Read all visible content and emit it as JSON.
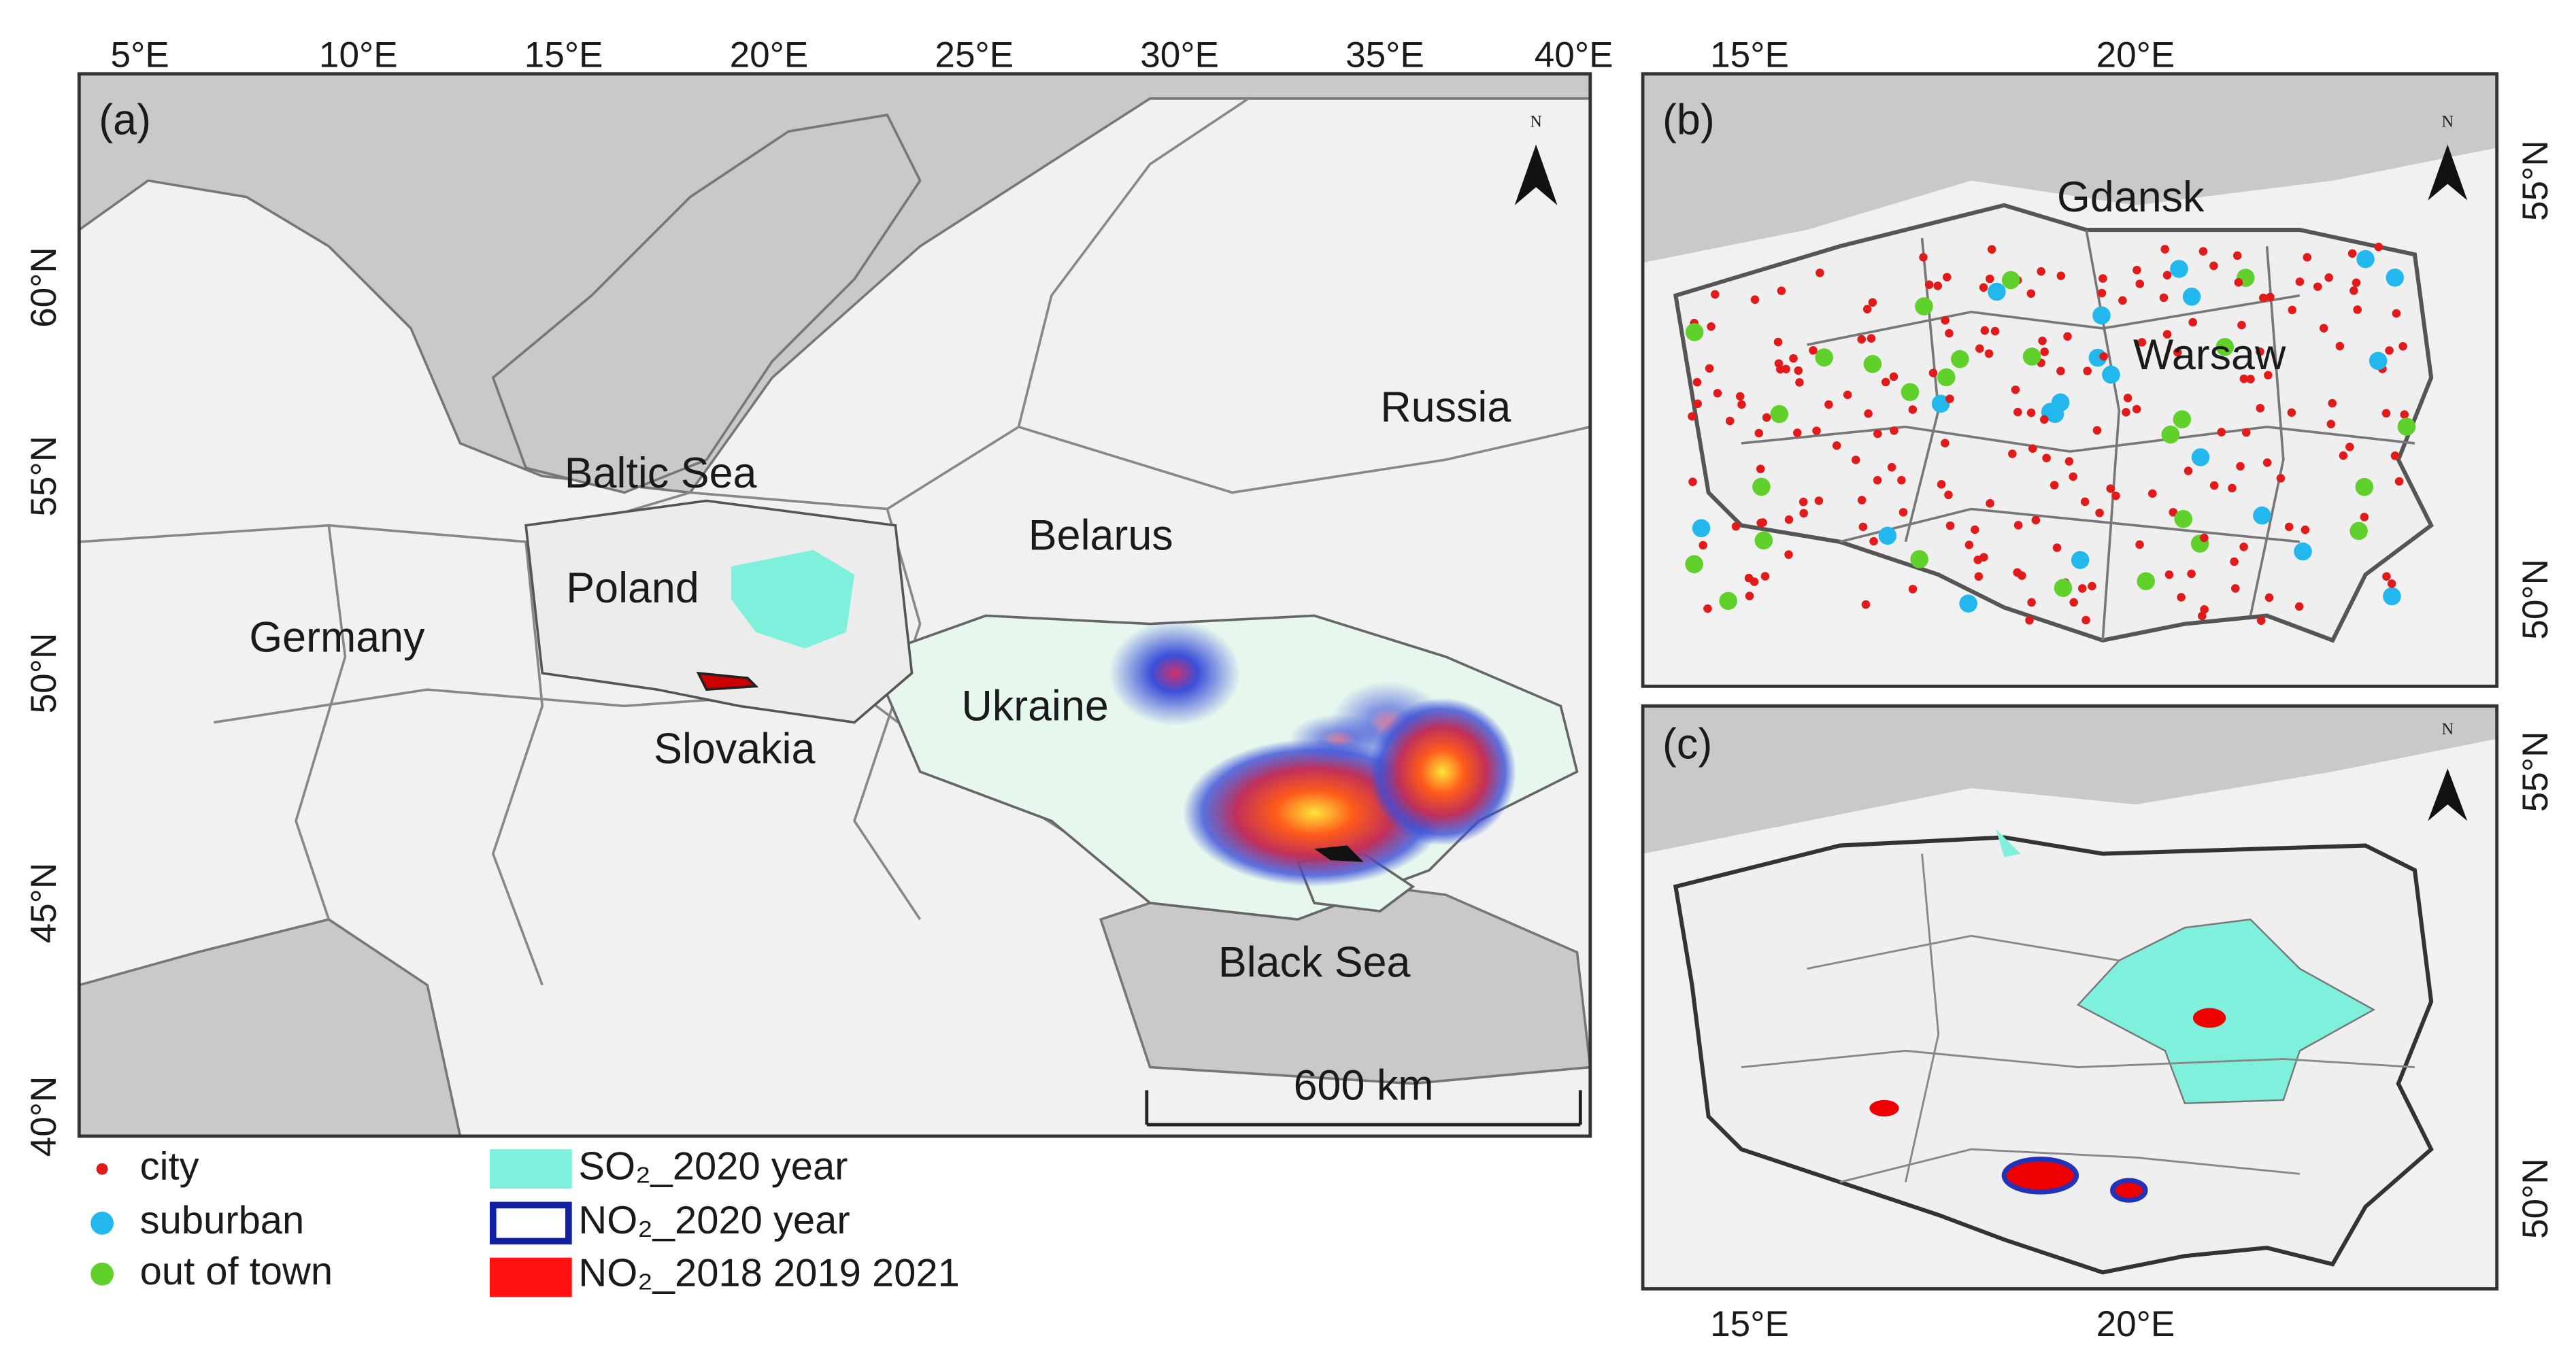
{
  "panels": [
    {
      "label": "(a)",
      "lon_ticks": [
        "5°E",
        "10°E",
        "15°E",
        "20°E",
        "25°E",
        "30°E",
        "35°E",
        "40°E"
      ],
      "lat_ticks": [
        "60°N",
        "55°N",
        "50°N",
        "45°N",
        "40°N"
      ],
      "places": [
        "Russia",
        "Baltic Sea",
        "Belarus",
        "Poland",
        "Germany",
        "Ukraine",
        "Slovakia",
        "Black Sea"
      ],
      "scale_bar": "600 km",
      "north": "N"
    },
    {
      "label": "(b)",
      "lon_ticks": [
        "15°E",
        "20°E"
      ],
      "lat_ticks": [
        "55°N",
        "50°N"
      ],
      "places": [
        "Gdansk",
        "Warsaw"
      ],
      "north": "N"
    },
    {
      "label": "(c)",
      "lon_ticks": [
        "15°E",
        "20°E"
      ],
      "lat_ticks": [
        "55°N",
        "50°N"
      ],
      "north": "N"
    }
  ],
  "legend": {
    "points": [
      "city",
      "suburban",
      "out of town"
    ],
    "areas": [
      "SO₂_2020 year",
      "NO₂_2020 year",
      "NO₂_2018 2019 2021"
    ]
  }
}
